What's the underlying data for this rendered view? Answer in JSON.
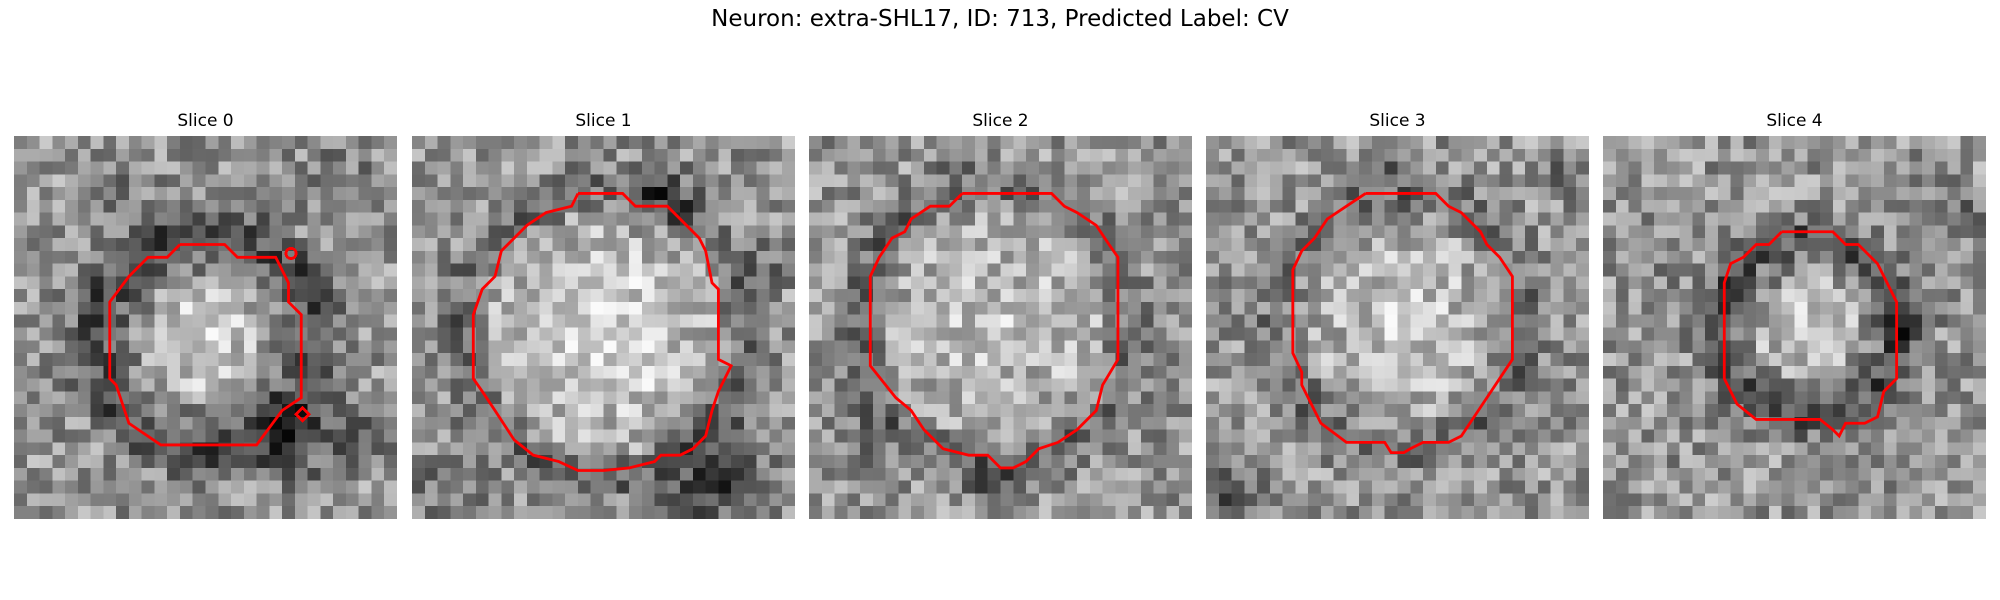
{
  "figure": {
    "title": "Neuron: extra-SHL17, ID: 713, Predicted Label: CV",
    "contour_color": "#ff0000",
    "colormap": "gray",
    "panels": [
      {
        "title": "Slice 0",
        "contour_shape": "octagon-small-offset"
      },
      {
        "title": "Slice 1",
        "contour_shape": "octagon-large"
      },
      {
        "title": "Slice 2",
        "contour_shape": "octagon-large"
      },
      {
        "title": "Slice 3",
        "contour_shape": "octagon-medium"
      },
      {
        "title": "Slice 4",
        "contour_shape": "octagon-small"
      }
    ]
  }
}
